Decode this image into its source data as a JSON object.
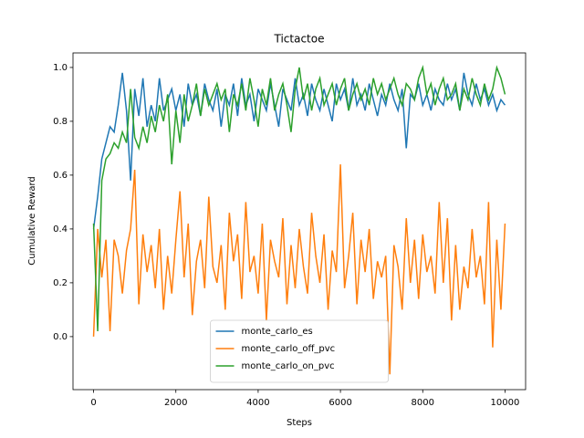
{
  "chart_data": {
    "type": "line",
    "title": "Tictactoe",
    "xlabel": "Steps",
    "ylabel": "Cumulative Reward",
    "legend": "lower center",
    "xlim": [
      -500,
      10500
    ],
    "ylim": [
      -0.197,
      1.054
    ],
    "xticks": [
      0,
      2000,
      4000,
      6000,
      8000,
      10000
    ],
    "yticks": [
      {
        "value": 0,
        "label": "0.0"
      },
      0.2,
      0.4,
      0.6,
      0.8,
      {
        "value": 1,
        "label": "1.0"
      }
    ],
    "x": [
      0,
      100,
      200,
      300,
      400,
      500,
      600,
      700,
      800,
      900,
      1000,
      1100,
      1200,
      1300,
      1400,
      1500,
      1600,
      1700,
      1800,
      1900,
      2000,
      2100,
      2200,
      2300,
      2400,
      2500,
      2600,
      2700,
      2800,
      2900,
      3000,
      3100,
      3200,
      3300,
      3400,
      3500,
      3600,
      3700,
      3800,
      3900,
      4000,
      4100,
      4200,
      4300,
      4400,
      4500,
      4600,
      4700,
      4800,
      4900,
      5000,
      5100,
      5200,
      5300,
      5400,
      5500,
      5600,
      5700,
      5800,
      5900,
      6000,
      6100,
      6200,
      6300,
      6400,
      6500,
      6600,
      6700,
      6800,
      6900,
      7000,
      7100,
      7200,
      7300,
      7400,
      7500,
      7600,
      7700,
      7800,
      7900,
      8000,
      8100,
      8200,
      8300,
      8400,
      8500,
      8600,
      8700,
      8800,
      8900,
      9000,
      9100,
      9200,
      9300,
      9400,
      9500,
      9600,
      9700,
      9800,
      9900,
      10000
    ],
    "series": [
      {
        "name": "monte_carlo_es",
        "color": "#1f77b4",
        "values": [
          0.4,
          0.52,
          0.66,
          0.72,
          0.78,
          0.76,
          0.86,
          0.98,
          0.84,
          0.58,
          0.92,
          0.82,
          0.96,
          0.78,
          0.86,
          0.8,
          0.96,
          0.84,
          0.88,
          0.92,
          0.84,
          0.9,
          0.78,
          0.94,
          0.86,
          0.9,
          0.82,
          0.94,
          0.88,
          0.84,
          0.92,
          0.78,
          0.9,
          0.86,
          0.94,
          0.82,
          0.96,
          0.86,
          0.9,
          0.8,
          0.92,
          0.88,
          0.84,
          0.94,
          0.86,
          0.78,
          0.92,
          0.88,
          0.84,
          0.96,
          0.86,
          0.9,
          0.82,
          0.94,
          0.88,
          0.84,
          0.92,
          0.86,
          0.8,
          0.94,
          0.88,
          0.92,
          0.84,
          0.96,
          0.86,
          0.9,
          0.84,
          0.94,
          0.88,
          0.82,
          0.9,
          0.86,
          0.94,
          0.88,
          0.84,
          0.92,
          0.7,
          0.9,
          0.88,
          0.94,
          0.86,
          0.9,
          0.84,
          0.92,
          0.88,
          0.86,
          0.94,
          0.88,
          0.92,
          0.84,
          0.98,
          0.9,
          0.86,
          0.94,
          0.88,
          0.92,
          0.86,
          0.9,
          0.84,
          0.88,
          0.86
        ]
      },
      {
        "name": "monte_carlo_off_pvc",
        "color": "#ff7f0e",
        "values": [
          0.0,
          0.4,
          0.22,
          0.36,
          0.02,
          0.36,
          0.3,
          0.16,
          0.32,
          0.4,
          0.62,
          0.12,
          0.38,
          0.24,
          0.34,
          0.18,
          0.4,
          0.1,
          0.3,
          0.16,
          0.36,
          0.54,
          0.22,
          0.42,
          0.08,
          0.28,
          0.36,
          0.18,
          0.52,
          0.26,
          0.2,
          0.34,
          0.1,
          0.46,
          0.28,
          0.38,
          0.14,
          0.5,
          0.24,
          0.3,
          0.16,
          0.42,
          0.06,
          0.36,
          0.28,
          0.22,
          0.44,
          0.12,
          0.34,
          0.18,
          0.4,
          0.26,
          0.16,
          0.46,
          0.3,
          0.2,
          0.38,
          0.1,
          0.32,
          0.24,
          0.64,
          0.18,
          0.3,
          0.46,
          0.12,
          0.36,
          0.24,
          0.4,
          0.14,
          0.28,
          0.22,
          0.3,
          -0.14,
          0.34,
          0.26,
          0.1,
          0.44,
          0.2,
          0.36,
          0.14,
          0.38,
          0.24,
          0.3,
          0.16,
          0.5,
          0.2,
          0.44,
          0.06,
          0.34,
          0.1,
          0.26,
          0.18,
          0.4,
          0.22,
          0.3,
          0.12,
          0.5,
          -0.04,
          0.36,
          0.1,
          0.42
        ]
      },
      {
        "name": "monte_carlo_on_pvc",
        "color": "#2ca02c",
        "values": [
          0.42,
          0.02,
          0.58,
          0.66,
          0.68,
          0.72,
          0.7,
          0.76,
          0.72,
          0.92,
          0.74,
          0.7,
          0.78,
          0.72,
          0.82,
          0.76,
          0.86,
          0.8,
          0.9,
          0.64,
          0.84,
          0.72,
          0.9,
          0.8,
          0.86,
          0.94,
          0.82,
          0.92,
          0.86,
          0.9,
          0.94,
          0.88,
          0.92,
          0.76,
          0.9,
          0.86,
          0.94,
          0.84,
          0.96,
          0.88,
          0.78,
          0.92,
          0.86,
          0.96,
          0.84,
          0.9,
          0.94,
          0.86,
          0.76,
          0.92,
          1.0,
          0.88,
          0.94,
          0.84,
          0.92,
          0.96,
          0.86,
          0.9,
          0.94,
          0.86,
          0.92,
          0.96,
          0.84,
          0.9,
          0.94,
          0.88,
          0.92,
          0.86,
          0.96,
          0.9,
          0.94,
          0.88,
          0.92,
          0.96,
          0.9,
          0.86,
          0.94,
          0.92,
          0.88,
          0.96,
          1.0,
          0.9,
          0.94,
          0.86,
          0.92,
          0.96,
          0.88,
          0.9,
          0.94,
          0.84,
          0.92,
          0.88,
          0.96,
          0.9,
          0.86,
          0.94,
          0.88,
          0.92,
          1.0,
          0.96,
          0.9
        ]
      }
    ]
  }
}
